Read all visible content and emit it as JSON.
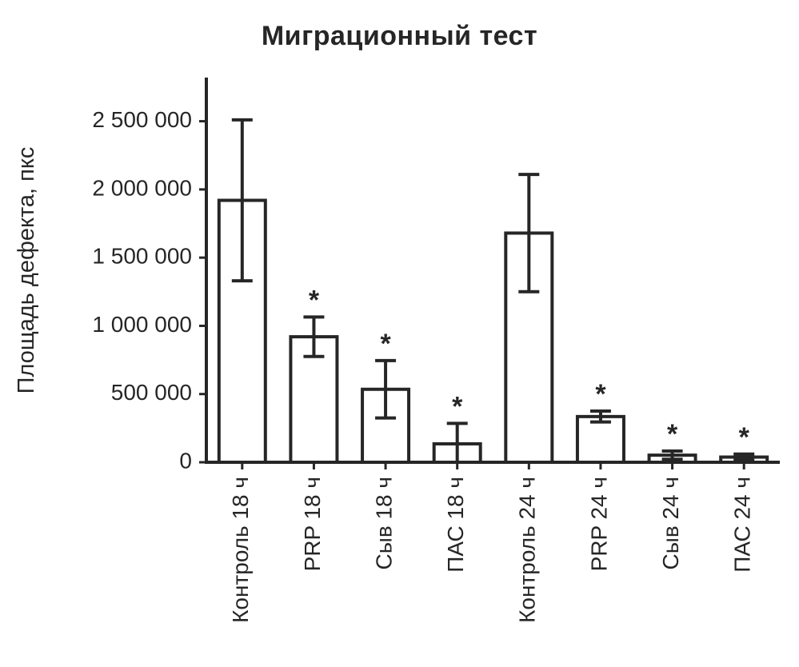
{
  "chart_data": {
    "type": "bar",
    "title": "Миграционный тест",
    "ylabel": "Площадь дефекта, пкс",
    "xlabel": "",
    "categories": [
      "Контроль 18 ч",
      "PRP 18 ч",
      "Сыв 18 ч",
      "ПАС 18 ч",
      "Контроль 24 ч",
      "PRP 24 ч",
      "Сыв 24 ч",
      "ПАС 24 ч"
    ],
    "values": [
      1920000,
      920000,
      535000,
      135000,
      1680000,
      335000,
      52000,
      38000
    ],
    "errors": [
      590000,
      145000,
      210000,
      150000,
      430000,
      40000,
      30000,
      22000
    ],
    "significance": [
      "",
      "*",
      "*",
      "*",
      "",
      "*",
      "*",
      "*"
    ],
    "ylim": [
      0,
      2820000
    ],
    "yticks": [
      0,
      500000,
      1000000,
      1500000,
      2000000,
      2500000
    ],
    "ytick_labels": [
      "0",
      "500 000",
      "1 000 000",
      "1 500 000",
      "2 000 000",
      "2 500 000"
    ],
    "grid": false,
    "legend": "none",
    "bar_fill": "#ffffff",
    "bar_stroke": "#262626",
    "axis_color": "#262626",
    "text_color": "#262626"
  }
}
